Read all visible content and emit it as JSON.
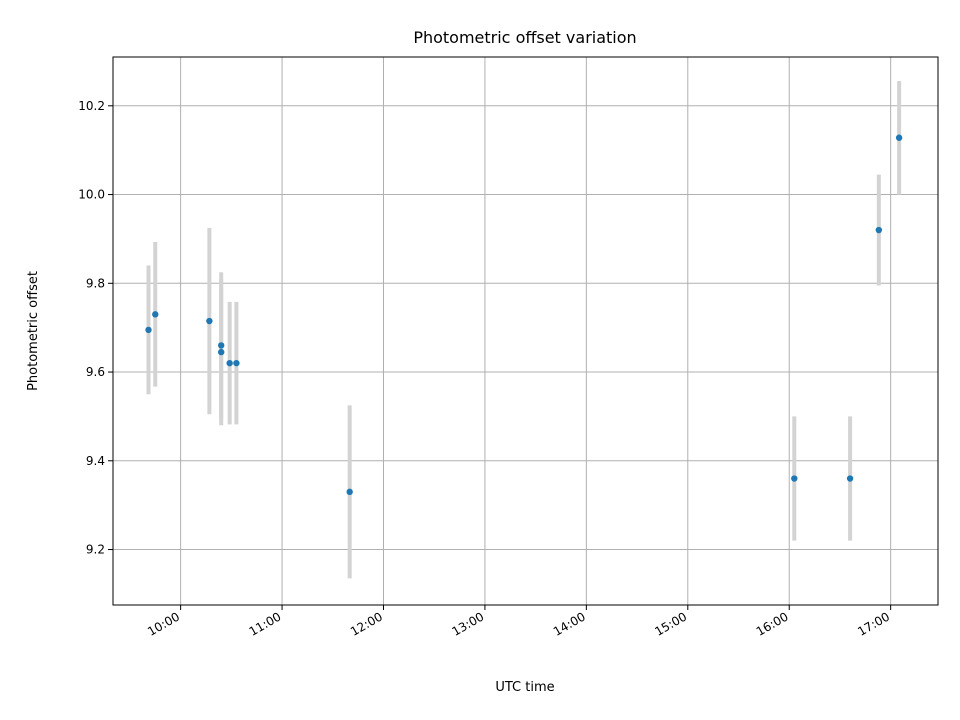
{
  "chart_data": {
    "type": "scatter",
    "title": "Photometric offset variation",
    "xlabel": "UTC time",
    "ylabel": "Photometric offset",
    "x_ticks": [
      "10:00",
      "11:00",
      "12:00",
      "13:00",
      "14:00",
      "15:00",
      "16:00",
      "17:00"
    ],
    "y_ticks": [
      9.2,
      9.4,
      9.6,
      9.8,
      10.0,
      10.2
    ],
    "xlim": [
      "09:20",
      "17:28"
    ],
    "ylim": [
      9.075,
      10.31
    ],
    "grid": true,
    "marker_color": "#1f77b4",
    "errorbar_color": "#d3d3d3",
    "series": [
      {
        "points": [
          {
            "x": "09:41",
            "y": 9.695,
            "err": 0.145
          },
          {
            "x": "09:45",
            "y": 9.73,
            "err": 0.163
          },
          {
            "x": "10:17",
            "y": 9.715,
            "err": 0.21
          },
          {
            "x": "10:24",
            "y": 9.66,
            "err": 0.165
          },
          {
            "x": "10:24",
            "y": 9.645,
            "err": 0.165
          },
          {
            "x": "10:29",
            "y": 9.62,
            "err": 0.138
          },
          {
            "x": "10:33",
            "y": 9.62,
            "err": 0.138
          },
          {
            "x": "11:40",
            "y": 9.33,
            "err": 0.195
          },
          {
            "x": "16:03",
            "y": 9.36,
            "err": 0.14
          },
          {
            "x": "16:36",
            "y": 9.36,
            "err": 0.14
          },
          {
            "x": "16:53",
            "y": 9.92,
            "err": 0.125
          },
          {
            "x": "17:05",
            "y": 10.128,
            "err": 0.128
          }
        ]
      }
    ]
  }
}
